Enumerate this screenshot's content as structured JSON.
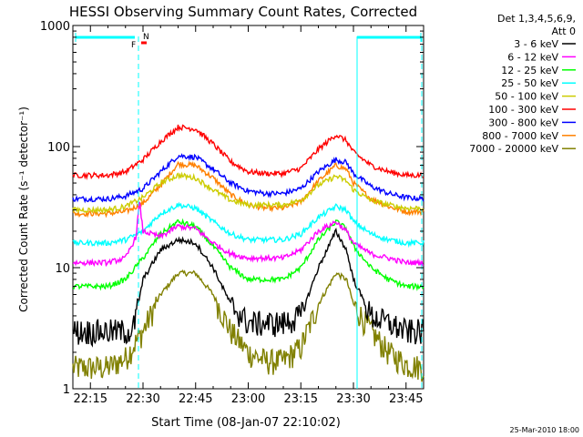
{
  "chart_data": {
    "type": "line",
    "title": "HESSI Observing Summary Count Rates, Corrected",
    "xlabel": "Start Time (08-Jan-07 22:10:02)",
    "ylabel": "Corrected Count Rate (s⁻¹ detector⁻¹)",
    "yscale": "log",
    "ylim": [
      1,
      1000
    ],
    "xlim_minutes": [
      10,
      110
    ],
    "x_tick_labels": [
      "22:15",
      "22:30",
      "22:45",
      "23:00",
      "23:15",
      "23:30",
      "23:45"
    ],
    "x_ticks_minutes": [
      15,
      30,
      45,
      60,
      75,
      90,
      105
    ],
    "y_tick_labels": [
      "1",
      "10",
      "100",
      "1000"
    ],
    "y_ticks": [
      1,
      10,
      100,
      1000
    ],
    "legend_header": [
      "Det 1,3,4,5,6,9,",
      "Att 0"
    ],
    "legend_position": "right",
    "flag_labels": [
      {
        "text": "F",
        "color": "#ff0000"
      },
      {
        "text": "N",
        "color": "#00ffff"
      }
    ],
    "timestamp": "25-Mar-2010 18:00",
    "series": [
      {
        "name": "3 - 6 keV",
        "color": "#000000",
        "x": [
          10,
          20,
          27,
          28,
          30,
          35,
          40,
          45,
          50,
          55,
          60,
          65,
          70,
          75,
          80,
          85,
          88,
          90,
          95,
          100,
          105,
          110
        ],
        "y": [
          3,
          3,
          3,
          4,
          8,
          14,
          17,
          16,
          10,
          5,
          3.5,
          3.5,
          3.5,
          4,
          10,
          20,
          14,
          8,
          4,
          3.5,
          3,
          3
        ]
      },
      {
        "name": "6 - 12 keV",
        "color": "#ff00ff",
        "x": [
          10,
          20,
          25,
          28,
          29,
          30,
          35,
          40,
          45,
          50,
          55,
          60,
          65,
          70,
          75,
          80,
          85,
          88,
          90,
          95,
          100,
          105,
          110
        ],
        "y": [
          11,
          11,
          12,
          18,
          35,
          20,
          18,
          22,
          21,
          16,
          13,
          12,
          12,
          12,
          14,
          20,
          24,
          20,
          16,
          13,
          12,
          11,
          11
        ]
      },
      {
        "name": "12 - 25 keV",
        "color": "#00ff00",
        "x": [
          10,
          20,
          25,
          30,
          35,
          40,
          45,
          50,
          55,
          60,
          65,
          70,
          75,
          80,
          85,
          88,
          90,
          95,
          100,
          105,
          110
        ],
        "y": [
          7,
          7,
          8,
          12,
          19,
          24,
          22,
          15,
          10,
          8,
          8,
          8,
          10,
          17,
          24,
          21,
          15,
          10,
          8,
          7,
          7
        ]
      },
      {
        "name": "25 - 50 keV",
        "color": "#00ffff",
        "x": [
          10,
          20,
          25,
          30,
          35,
          40,
          45,
          50,
          55,
          60,
          65,
          70,
          75,
          80,
          85,
          88,
          90,
          95,
          100,
          105,
          110
        ],
        "y": [
          16,
          16,
          17,
          20,
          28,
          33,
          31,
          24,
          19,
          17,
          17,
          17,
          19,
          26,
          32,
          30,
          24,
          19,
          17,
          16,
          16
        ]
      },
      {
        "name": "50 - 100 keV",
        "color": "#cccc00",
        "x": [
          10,
          20,
          25,
          30,
          35,
          40,
          45,
          50,
          55,
          60,
          65,
          70,
          75,
          80,
          85,
          88,
          90,
          95,
          100,
          105,
          110
        ],
        "y": [
          30,
          30,
          32,
          38,
          50,
          58,
          55,
          44,
          36,
          33,
          33,
          33,
          36,
          48,
          57,
          52,
          44,
          36,
          33,
          31,
          31
        ]
      },
      {
        "name": "100 - 300 keV",
        "color": "#ff0000",
        "x": [
          10,
          20,
          25,
          30,
          35,
          40,
          45,
          50,
          55,
          60,
          65,
          70,
          75,
          80,
          85,
          88,
          90,
          95,
          100,
          105,
          110
        ],
        "y": [
          58,
          58,
          62,
          78,
          110,
          145,
          140,
          105,
          75,
          62,
          60,
          60,
          66,
          95,
          125,
          112,
          90,
          70,
          62,
          58,
          58
        ]
      },
      {
        "name": "300 - 800 keV",
        "color": "#0000ff",
        "x": [
          10,
          20,
          25,
          30,
          35,
          40,
          45,
          50,
          55,
          60,
          65,
          70,
          75,
          80,
          85,
          88,
          90,
          95,
          100,
          105,
          110
        ],
        "y": [
          37,
          37,
          39,
          45,
          62,
          84,
          82,
          65,
          50,
          43,
          41,
          41,
          45,
          62,
          78,
          74,
          60,
          47,
          41,
          38,
          37
        ]
      },
      {
        "name": "800 - 7000 keV",
        "color": "#ff8000",
        "x": [
          10,
          20,
          25,
          30,
          35,
          40,
          45,
          50,
          55,
          60,
          65,
          70,
          75,
          80,
          85,
          88,
          90,
          95,
          100,
          105,
          110
        ],
        "y": [
          28,
          28,
          29,
          34,
          48,
          72,
          70,
          55,
          40,
          33,
          31,
          31,
          35,
          52,
          70,
          65,
          50,
          37,
          32,
          29,
          29
        ]
      },
      {
        "name": "7000 - 20000 keV",
        "color": "#808000",
        "x": [
          10,
          20,
          25,
          30,
          35,
          40,
          45,
          50,
          55,
          60,
          65,
          70,
          75,
          80,
          85,
          88,
          90,
          95,
          100,
          105,
          110
        ],
        "y": [
          1.5,
          1.5,
          1.8,
          3,
          6,
          9,
          9,
          6,
          3,
          2,
          1.7,
          1.7,
          2.2,
          5,
          9,
          8,
          5,
          3,
          2,
          1.6,
          1.5
        ]
      }
    ]
  }
}
